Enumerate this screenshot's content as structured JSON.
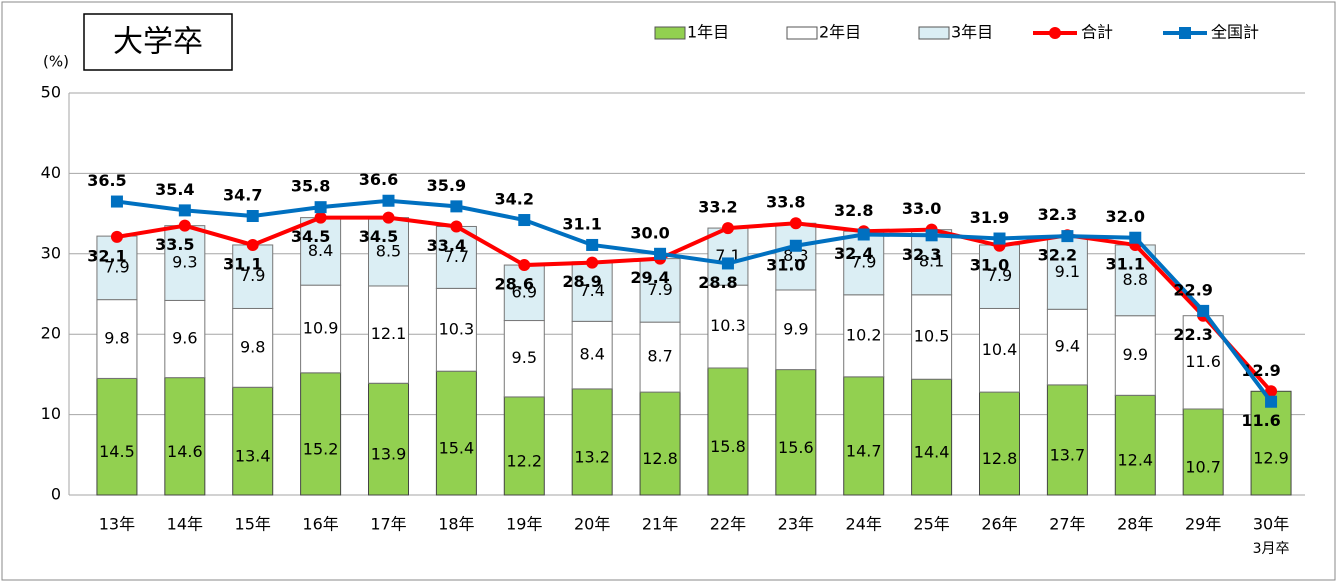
{
  "chart_data": {
    "type": "bar-line",
    "title": "大学卒",
    "y_label": "(%)",
    "categories": [
      "13年",
      "14年",
      "15年",
      "16年",
      "17年",
      "18年",
      "19年",
      "20年",
      "21年",
      "22年",
      "23年",
      "24年",
      "25年",
      "26年",
      "27年",
      "28年",
      "29年",
      "30年"
    ],
    "category_note": "3月卒",
    "ylim": [
      0,
      50
    ],
    "yticks": [
      0,
      10,
      20,
      30,
      40,
      50
    ],
    "grid": true,
    "legend": "top-right",
    "series": [
      {
        "name": "1年目",
        "type": "bar",
        "color": "#92d050",
        "values": [
          14.5,
          14.6,
          13.4,
          15.2,
          13.9,
          15.4,
          12.2,
          13.2,
          12.8,
          15.8,
          15.6,
          14.7,
          14.4,
          12.8,
          13.7,
          12.4,
          10.7,
          12.9
        ]
      },
      {
        "name": "2年目",
        "type": "bar",
        "color": "#ffffff",
        "values": [
          9.8,
          9.6,
          9.8,
          10.9,
          12.1,
          10.3,
          9.5,
          8.4,
          8.7,
          10.3,
          9.9,
          10.2,
          10.5,
          10.4,
          9.4,
          9.9,
          11.6,
          null
        ]
      },
      {
        "name": "3年目",
        "type": "bar",
        "color": "#dbeef4",
        "values": [
          7.9,
          9.3,
          7.9,
          8.4,
          8.5,
          7.7,
          6.9,
          7.4,
          7.9,
          7.1,
          8.3,
          7.9,
          8.1,
          7.9,
          9.1,
          8.8,
          null,
          null
        ]
      },
      {
        "name": "合計",
        "type": "line",
        "color": "#ff0000",
        "marker": "circle",
        "values": [
          32.1,
          33.5,
          31.1,
          34.5,
          34.5,
          33.4,
          28.6,
          28.9,
          29.4,
          33.2,
          33.8,
          32.8,
          33.0,
          31.0,
          32.3,
          31.1,
          22.3,
          12.9
        ],
        "value_labels": [
          "32.1",
          "33.5",
          "31.1",
          "34.5",
          "34.5",
          "33.4",
          "28.6",
          "28.9",
          "29.4",
          "33.2",
          "33.8",
          "32.8",
          "33.0",
          "31.0",
          "32.3",
          "31.1",
          "22.3",
          "12.9"
        ]
      },
      {
        "name": "全国計",
        "type": "line",
        "color": "#0070c0",
        "marker": "square",
        "values": [
          36.5,
          35.4,
          34.7,
          35.8,
          36.6,
          35.9,
          34.2,
          31.1,
          30.0,
          28.8,
          31.0,
          32.4,
          32.3,
          31.9,
          32.2,
          32.0,
          22.9,
          11.6
        ],
        "value_labels": [
          "36.5",
          "35.4",
          "34.7",
          "35.8",
          "36.6",
          "35.9",
          "34.2",
          "31.1",
          "30.0",
          "28.8",
          "31.0",
          "32.4",
          "32.3",
          "31.9",
          "32.2",
          "32.0",
          "22.9",
          "11.6"
        ]
      }
    ]
  }
}
